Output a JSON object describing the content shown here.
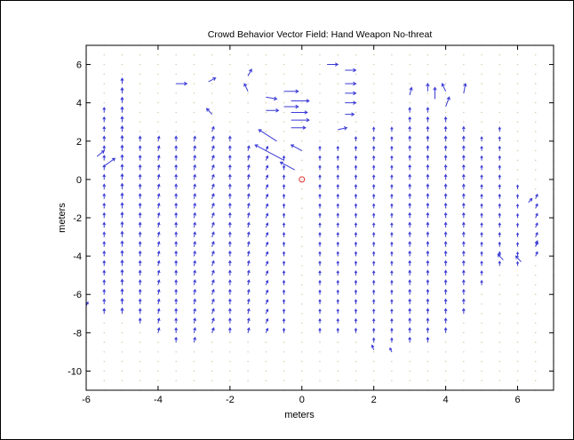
{
  "chart_data": {
    "type": "quiver",
    "title": "Crowd Behavior Vector Field: Hand Weapon No-threat",
    "xlabel": "meters",
    "ylabel": "meters",
    "xlim": [
      -6,
      7
    ],
    "ylim": [
      -11,
      7
    ],
    "xticks": [
      "-6",
      "-4",
      "-2",
      "0",
      "2",
      "4",
      "6"
    ],
    "yticks": [
      "6",
      "4",
      "2",
      "0",
      "-2",
      "-4",
      "-6",
      "-8",
      "-10"
    ],
    "grid": false,
    "colors": {
      "arrow": "#3b3bd6",
      "dot": "#c8c8a0",
      "marker": "#e03030",
      "axes": "#000000"
    },
    "marker": {
      "x": 0,
      "y": 0,
      "symbol": "circle"
    },
    "columns": [
      {
        "x": -5.5,
        "y_min": -7.0,
        "y_max": 3.5,
        "u": 0.0,
        "v": 0.25
      },
      {
        "x": -5.0,
        "y_min": -7.0,
        "y_max": 5.3,
        "u": 0.0,
        "v": 0.28
      },
      {
        "x": -4.5,
        "y_min": -7.5,
        "y_max": 2.0,
        "u": 0.0,
        "v": 0.25
      },
      {
        "x": -4.0,
        "y_min": -8.0,
        "y_max": 2.0,
        "u": 0.03,
        "v": 0.25
      },
      {
        "x": -3.5,
        "y_min": -8.5,
        "y_max": 2.0,
        "u": 0.0,
        "v": 0.25
      },
      {
        "x": -3.0,
        "y_min": -8.5,
        "y_max": 2.0,
        "u": 0.03,
        "v": 0.25
      },
      {
        "x": -2.5,
        "y_min": -8.0,
        "y_max": 2.8,
        "u": 0.05,
        "v": 0.25
      },
      {
        "x": -2.0,
        "y_min": -8.0,
        "y_max": 2.0,
        "u": 0.0,
        "v": 0.25
      },
      {
        "x": -1.5,
        "y_min": -8.0,
        "y_max": 1.8,
        "u": 0.03,
        "v": 0.25
      },
      {
        "x": -1.0,
        "y_min": -8.0,
        "y_max": 1.5,
        "u": 0.05,
        "v": 0.22
      },
      {
        "x": -0.5,
        "y_min": -8.0,
        "y_max": 1.0,
        "u": 0.0,
        "v": 0.22
      },
      {
        "x": 0.5,
        "y_min": -8.0,
        "y_max": 1.5,
        "u": 0.0,
        "v": 0.22
      },
      {
        "x": 1.0,
        "y_min": -8.0,
        "y_max": 1.5,
        "u": 0.0,
        "v": 0.22
      },
      {
        "x": 1.5,
        "y_min": -8.0,
        "y_max": 2.0,
        "u": 0.0,
        "v": 0.22
      },
      {
        "x": 2.0,
        "y_min": -8.5,
        "y_max": 2.5,
        "u": 0.0,
        "v": 0.22
      },
      {
        "x": 2.5,
        "y_min": -8.5,
        "y_max": 2.5,
        "u": 0.0,
        "v": 0.22
      },
      {
        "x": 3.0,
        "y_min": -8.5,
        "y_max": 3.5,
        "u": 0.0,
        "v": 0.25
      },
      {
        "x": 3.5,
        "y_min": -8.5,
        "y_max": 3.5,
        "u": 0.0,
        "v": 0.25
      },
      {
        "x": 4.0,
        "y_min": -8.0,
        "y_max": 3.0,
        "u": 0.0,
        "v": 0.25
      },
      {
        "x": 4.5,
        "y_min": -7.0,
        "y_max": 2.5,
        "u": 0.0,
        "v": 0.25
      },
      {
        "x": 5.0,
        "y_min": -5.5,
        "y_max": 2.0,
        "u": 0.0,
        "v": 0.22
      },
      {
        "x": 5.5,
        "y_min": -4.5,
        "y_max": 2.5,
        "u": 0.0,
        "v": 0.22
      },
      {
        "x": 6.0,
        "y_min": -4.5,
        "y_max": -0.5,
        "u": 0.0,
        "v": 0.2
      },
      {
        "x": 6.5,
        "y_min": -4.0,
        "y_max": -1.0,
        "u": 0.05,
        "v": 0.22
      }
    ],
    "extra_vectors": [
      {
        "x": -5.5,
        "y": 0.7,
        "u": 0.3,
        "v": 0.4
      },
      {
        "x": -5.7,
        "y": 1.2,
        "u": 0.2,
        "v": 0.3
      },
      {
        "x": -3.5,
        "y": 5.0,
        "u": 0.3,
        "v": 0.0
      },
      {
        "x": -2.6,
        "y": 5.1,
        "u": 0.2,
        "v": 0.2
      },
      {
        "x": -2.5,
        "y": 3.4,
        "u": -0.15,
        "v": 0.3
      },
      {
        "x": -1.5,
        "y": 5.4,
        "u": 0.1,
        "v": 0.35
      },
      {
        "x": -1.5,
        "y": 4.6,
        "u": -0.1,
        "v": 0.4
      },
      {
        "x": -1.0,
        "y": 4.3,
        "u": 0.3,
        "v": -0.1
      },
      {
        "x": -1.0,
        "y": 3.6,
        "u": 0.35,
        "v": 0.0
      },
      {
        "x": -0.5,
        "y": 4.6,
        "u": 0.4,
        "v": 0.0
      },
      {
        "x": -0.5,
        "y": 3.8,
        "u": 0.4,
        "v": 0.0
      },
      {
        "x": -0.3,
        "y": 4.1,
        "u": 0.5,
        "v": 0.0
      },
      {
        "x": -0.3,
        "y": 3.5,
        "u": 0.45,
        "v": 0.0
      },
      {
        "x": -0.3,
        "y": 3.1,
        "u": 0.5,
        "v": 0.0
      },
      {
        "x": -0.3,
        "y": 2.7,
        "u": 0.4,
        "v": 0.0
      },
      {
        "x": -0.7,
        "y": 2.0,
        "u": -0.5,
        "v": 0.6
      },
      {
        "x": -0.5,
        "y": 1.0,
        "u": -0.8,
        "v": 0.8
      },
      {
        "x": -0.2,
        "y": 0.5,
        "u": -0.4,
        "v": 0.4
      },
      {
        "x": 0.0,
        "y": 1.5,
        "u": -0.3,
        "v": 0.3
      },
      {
        "x": 0.7,
        "y": 6.0,
        "u": 0.3,
        "v": 0.0
      },
      {
        "x": 1.2,
        "y": 5.7,
        "u": 0.3,
        "v": 0.0
      },
      {
        "x": 1.2,
        "y": 5.0,
        "u": 0.3,
        "v": 0.0
      },
      {
        "x": 1.2,
        "y": 4.5,
        "u": 0.3,
        "v": 0.0
      },
      {
        "x": 1.2,
        "y": 4.0,
        "u": 0.3,
        "v": 0.0
      },
      {
        "x": 1.2,
        "y": 3.4,
        "u": 0.25,
        "v": 0.0
      },
      {
        "x": 1.0,
        "y": 2.6,
        "u": 0.25,
        "v": 0.1
      },
      {
        "x": 3.0,
        "y": 4.4,
        "u": 0.05,
        "v": 0.4
      },
      {
        "x": 3.5,
        "y": 4.6,
        "u": 0.0,
        "v": 0.4
      },
      {
        "x": 3.7,
        "y": 4.2,
        "u": 0.0,
        "v": 0.6
      },
      {
        "x": 4.0,
        "y": 4.6,
        "u": -0.1,
        "v": 0.4
      },
      {
        "x": 4.0,
        "y": 3.8,
        "u": 0.1,
        "v": 0.5
      },
      {
        "x": 4.5,
        "y": 4.5,
        "u": 0.05,
        "v": 0.5
      },
      {
        "x": 5.6,
        "y": -4.2,
        "u": -0.15,
        "v": 0.3
      },
      {
        "x": 6.1,
        "y": -4.3,
        "u": -0.15,
        "v": 0.3
      },
      {
        "x": 6.5,
        "y": -3.5,
        "u": 0.05,
        "v": 0.3
      },
      {
        "x": 6.3,
        "y": -1.2,
        "u": 0.1,
        "v": 0.2
      },
      {
        "x": 2.0,
        "y": -8.9,
        "u": -0.05,
        "v": 0.25
      },
      {
        "x": 2.5,
        "y": -9.0,
        "u": -0.05,
        "v": 0.2
      },
      {
        "x": -6.0,
        "y": -6.6,
        "u": 0.05,
        "v": 0.2
      }
    ]
  }
}
